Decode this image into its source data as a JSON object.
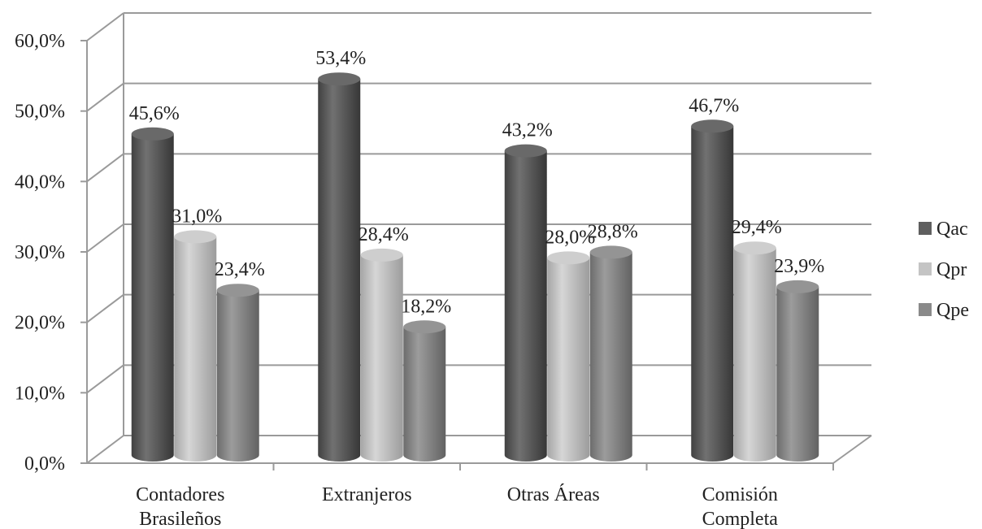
{
  "chart_data": {
    "type": "bar",
    "style": "3d-cylinder",
    "categories": [
      [
        "Contadores",
        "Brasileños"
      ],
      [
        "Extranjeros"
      ],
      [
        "Otras Áreas"
      ],
      [
        "Comisión",
        "Completa"
      ]
    ],
    "series": [
      {
        "name": "Qac",
        "values": [
          45.6,
          53.4,
          43.2,
          46.7
        ],
        "labels": [
          "45,6%",
          "53,4%",
          "43,2%",
          "46,7%"
        ],
        "color": "#5f5f5f"
      },
      {
        "name": "Qpr",
        "values": [
          31.0,
          28.4,
          28.0,
          29.4
        ],
        "labels": [
          "31,0%",
          "28,4%",
          "28,0%",
          "29,4%"
        ],
        "color": "#c4c4c4"
      },
      {
        "name": "Qpe",
        "values": [
          23.4,
          18.2,
          28.8,
          23.9
        ],
        "labels": [
          "23,4%",
          "18,2%",
          "28,8%",
          "23,9%"
        ],
        "color": "#8a8a8a"
      }
    ],
    "y_ticks": [
      "0,0%",
      "10,0%",
      "20,0%",
      "30,0%",
      "40,0%",
      "50,0%",
      "60,0%"
    ],
    "ylim": [
      0,
      60
    ],
    "grid": true,
    "legend": "right"
  }
}
